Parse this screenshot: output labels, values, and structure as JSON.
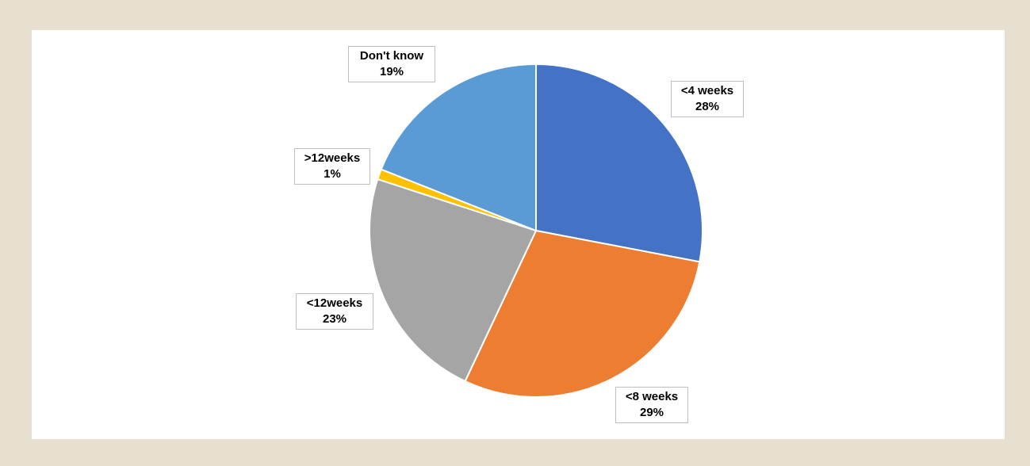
{
  "chart_data": {
    "type": "pie",
    "title": "",
    "start_angle_deg": 0,
    "direction": "clockwise",
    "slices": [
      {
        "label": "<4 weeks",
        "value": 28,
        "value_label": "28%",
        "color": "#4472c4"
      },
      {
        "label": "<8 weeks",
        "value": 29,
        "value_label": "29%",
        "color": "#ed7d31"
      },
      {
        "label": "<12weeks",
        "value": 23,
        "value_label": "23%",
        "color": "#a5a5a5"
      },
      {
        "label": ">12weeks",
        "value": 1,
        "value_label": "1%",
        "color": "#ffc000"
      },
      {
        "label": "Don't know",
        "value": 19,
        "value_label": "19%",
        "color": "#5b9bd5"
      }
    ]
  }
}
